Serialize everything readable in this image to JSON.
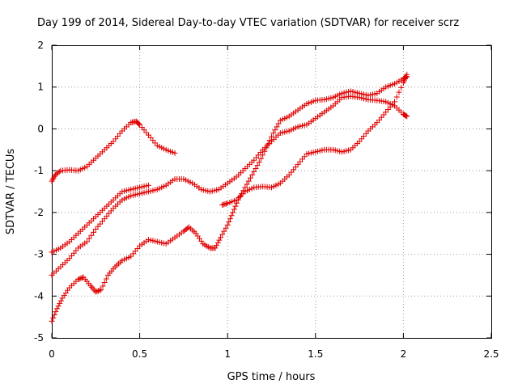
{
  "chart_data": {
    "type": "scatter",
    "title": "Day 199 of 2014, Sidereal Day-to-day VTEC variation (SDTVAR) for receiver scrz",
    "xlabel": "GPS time / hours",
    "ylabel": "SDTVAR / TECUs",
    "xlim": [
      0,
      2.5
    ],
    "ylim": [
      -5,
      2
    ],
    "xticks": [
      "0",
      "0.5",
      "1",
      "1.5",
      "2",
      "2.5"
    ],
    "yticks": [
      "-5",
      "-4",
      "-3",
      "-2",
      "-1",
      "0",
      "1",
      "2"
    ],
    "grid": true,
    "marker": "+",
    "color": "#e00000",
    "series": [
      {
        "points": [
          [
            0,
            -1.25
          ],
          [
            0.02,
            -1.1
          ],
          [
            0.05,
            -1.0
          ],
          [
            0.1,
            -0.98
          ],
          [
            0.15,
            -1.0
          ],
          [
            0.2,
            -0.9
          ],
          [
            0.25,
            -0.7
          ],
          [
            0.3,
            -0.5
          ],
          [
            0.35,
            -0.3
          ],
          [
            0.4,
            -0.05
          ],
          [
            0.45,
            0.15
          ],
          [
            0.48,
            0.18
          ],
          [
            0.5,
            0.1
          ],
          [
            0.55,
            -0.15
          ],
          [
            0.6,
            -0.4
          ],
          [
            0.65,
            -0.5
          ],
          [
            0.7,
            -0.58
          ]
        ]
      },
      {
        "points": [
          [
            0,
            -2.95
          ],
          [
            0.05,
            -2.85
          ],
          [
            0.1,
            -2.7
          ],
          [
            0.15,
            -2.5
          ],
          [
            0.2,
            -2.3
          ],
          [
            0.25,
            -2.1
          ],
          [
            0.3,
            -1.9
          ],
          [
            0.35,
            -1.7
          ],
          [
            0.4,
            -1.5
          ],
          [
            0.45,
            -1.45
          ],
          [
            0.5,
            -1.4
          ],
          [
            0.55,
            -1.35
          ]
        ]
      },
      {
        "points": [
          [
            0,
            -3.5
          ],
          [
            0.05,
            -3.3
          ],
          [
            0.1,
            -3.1
          ],
          [
            0.15,
            -2.85
          ],
          [
            0.2,
            -2.7
          ],
          [
            0.25,
            -2.4
          ],
          [
            0.3,
            -2.15
          ],
          [
            0.35,
            -1.9
          ],
          [
            0.4,
            -1.7
          ],
          [
            0.45,
            -1.6
          ],
          [
            0.5,
            -1.55
          ],
          [
            0.55,
            -1.5
          ],
          [
            0.6,
            -1.45
          ],
          [
            0.65,
            -1.35
          ],
          [
            0.7,
            -1.2
          ],
          [
            0.75,
            -1.2
          ],
          [
            0.8,
            -1.3
          ],
          [
            0.85,
            -1.45
          ],
          [
            0.9,
            -1.5
          ],
          [
            0.95,
            -1.45
          ],
          [
            1.0,
            -1.3
          ],
          [
            1.05,
            -1.15
          ],
          [
            1.1,
            -0.95
          ],
          [
            1.15,
            -0.75
          ],
          [
            1.2,
            -0.5
          ],
          [
            1.25,
            -0.3
          ],
          [
            1.3,
            -0.1
          ],
          [
            1.35,
            -0.05
          ],
          [
            1.4,
            0.05
          ],
          [
            1.45,
            0.1
          ],
          [
            1.5,
            0.25
          ],
          [
            1.55,
            0.4
          ],
          [
            1.6,
            0.55
          ],
          [
            1.65,
            0.75
          ],
          [
            1.7,
            0.78
          ],
          [
            1.75,
            0.75
          ],
          [
            1.8,
            0.7
          ],
          [
            1.85,
            0.68
          ],
          [
            1.9,
            0.65
          ],
          [
            1.95,
            0.55
          ],
          [
            2.0,
            0.35
          ],
          [
            2.02,
            0.3
          ]
        ]
      },
      {
        "points": [
          [
            0,
            -4.6
          ],
          [
            0.03,
            -4.3
          ],
          [
            0.06,
            -4.05
          ],
          [
            0.1,
            -3.8
          ],
          [
            0.15,
            -3.6
          ],
          [
            0.18,
            -3.55
          ],
          [
            0.22,
            -3.75
          ],
          [
            0.25,
            -3.9
          ],
          [
            0.28,
            -3.85
          ],
          [
            0.32,
            -3.5
          ],
          [
            0.36,
            -3.3
          ],
          [
            0.4,
            -3.15
          ],
          [
            0.45,
            -3.05
          ],
          [
            0.5,
            -2.8
          ],
          [
            0.55,
            -2.65
          ],
          [
            0.6,
            -2.7
          ],
          [
            0.65,
            -2.75
          ],
          [
            0.7,
            -2.6
          ],
          [
            0.75,
            -2.45
          ],
          [
            0.78,
            -2.35
          ],
          [
            0.82,
            -2.5
          ],
          [
            0.86,
            -2.75
          ],
          [
            0.9,
            -2.85
          ],
          [
            0.93,
            -2.85
          ],
          [
            0.96,
            -2.6
          ],
          [
            1.0,
            -2.3
          ],
          [
            1.03,
            -2.0
          ],
          [
            1.06,
            -1.7
          ],
          [
            1.1,
            -1.4
          ],
          [
            1.14,
            -1.1
          ],
          [
            1.18,
            -0.8
          ],
          [
            1.22,
            -0.45
          ],
          [
            1.26,
            -0.1
          ],
          [
            1.3,
            0.2
          ],
          [
            1.35,
            0.3
          ],
          [
            1.4,
            0.45
          ],
          [
            1.45,
            0.6
          ],
          [
            1.5,
            0.68
          ],
          [
            1.55,
            0.7
          ],
          [
            1.6,
            0.75
          ],
          [
            1.65,
            0.85
          ],
          [
            1.7,
            0.9
          ],
          [
            1.75,
            0.85
          ],
          [
            1.8,
            0.8
          ],
          [
            1.85,
            0.85
          ],
          [
            1.9,
            1.0
          ],
          [
            1.95,
            1.08
          ],
          [
            2.0,
            1.2
          ],
          [
            2.02,
            1.25
          ]
        ]
      },
      {
        "points": [
          [
            0.97,
            -1.82
          ],
          [
            1.0,
            -1.78
          ],
          [
            1.05,
            -1.7
          ],
          [
            1.1,
            -1.5
          ],
          [
            1.15,
            -1.4
          ],
          [
            1.2,
            -1.38
          ],
          [
            1.25,
            -1.4
          ],
          [
            1.3,
            -1.3
          ],
          [
            1.35,
            -1.1
          ],
          [
            1.4,
            -0.85
          ],
          [
            1.45,
            -0.6
          ],
          [
            1.5,
            -0.55
          ],
          [
            1.55,
            -0.5
          ],
          [
            1.6,
            -0.5
          ],
          [
            1.65,
            -0.55
          ],
          [
            1.7,
            -0.5
          ],
          [
            1.75,
            -0.3
          ],
          [
            1.8,
            -0.05
          ],
          [
            1.85,
            0.15
          ],
          [
            1.9,
            0.4
          ],
          [
            1.95,
            0.65
          ],
          [
            2.0,
            1.1
          ],
          [
            2.02,
            1.3
          ]
        ]
      }
    ]
  }
}
